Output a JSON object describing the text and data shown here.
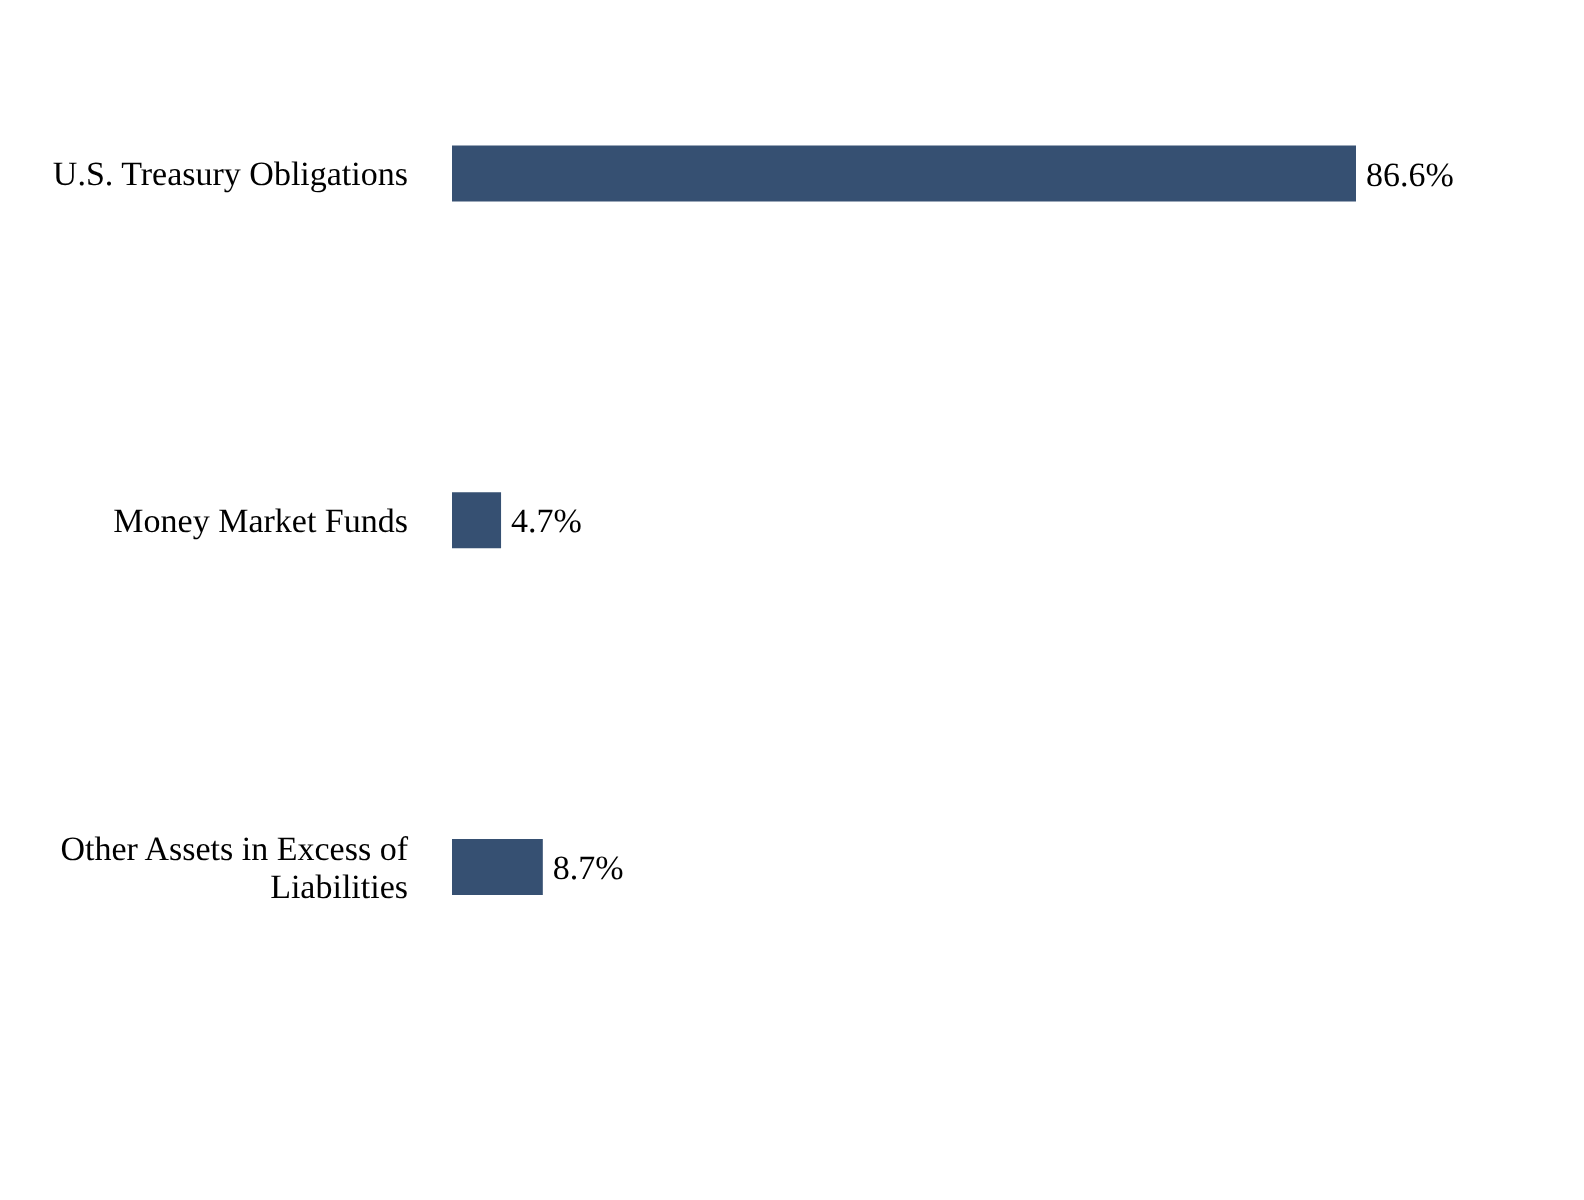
{
  "chart_data": {
    "type": "bar",
    "orientation": "horizontal",
    "categories": [
      "U.S. Treasury Obligations",
      "Money Market Funds",
      "Other Assets in Excess of Liabilities"
    ],
    "values": [
      86.6,
      4.7,
      8.7
    ],
    "color": "#365072",
    "value_labels": [
      "86.6%",
      "4.7%",
      "8.7%"
    ],
    "grid": false,
    "legend": false
  }
}
